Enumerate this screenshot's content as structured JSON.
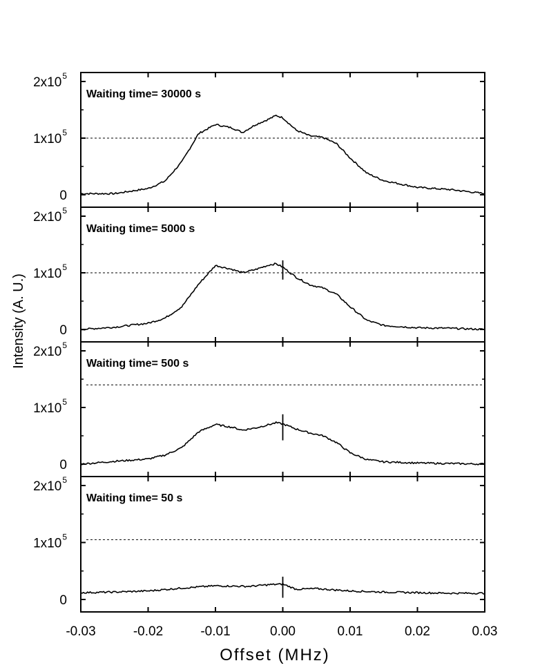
{
  "chart_data": {
    "type": "line",
    "xlabel": "Offset (MHz)",
    "ylabel": "Intensity (A. U.)",
    "xlim": [
      -0.03,
      0.03
    ],
    "ylim": [
      0,
      200000
    ],
    "x_ticks": [
      "-0.03",
      "-0.02",
      "-0.01",
      "0.00",
      "0.01",
      "0.02",
      "0.03"
    ],
    "y_ticks": [
      {
        "base": "0",
        "exp": ""
      },
      {
        "base": "1x10",
        "exp": "5"
      },
      {
        "base": "2x10",
        "exp": "5"
      }
    ],
    "grid": false,
    "legend": "none",
    "line_color": "#000000",
    "reference_line": "dashed horizontal line in each panel",
    "panels": [
      {
        "title": "Waiting time= 30000 s",
        "ref_y": 100000,
        "x": [
          -0.03,
          -0.025,
          -0.02,
          -0.0175,
          -0.015,
          -0.0125,
          -0.01,
          -0.0075,
          -0.006,
          -0.004,
          -0.002,
          -0.001,
          0.0,
          0.002,
          0.004,
          0.006,
          0.008,
          0.01,
          0.0125,
          0.015,
          0.02,
          0.025,
          0.03
        ],
        "y": [
          2000,
          2000,
          11000,
          24000,
          58000,
          108000,
          124000,
          118000,
          110000,
          124000,
          134000,
          140000,
          136000,
          114000,
          104000,
          101000,
          90000,
          65000,
          38000,
          25000,
          13000,
          9000,
          2000
        ]
      },
      {
        "title": "Waiting time= 5000 s",
        "ref_y": 100000,
        "x": [
          -0.03,
          -0.025,
          -0.02,
          -0.0175,
          -0.015,
          -0.0125,
          -0.01,
          -0.0075,
          -0.006,
          -0.004,
          -0.002,
          -0.001,
          0.0,
          0.002,
          0.004,
          0.006,
          0.008,
          0.01,
          0.0125,
          0.015,
          0.02,
          0.025,
          0.03
        ],
        "y": [
          0,
          4000,
          11000,
          20000,
          40000,
          80000,
          113000,
          106000,
          100000,
          106000,
          114000,
          116000,
          110000,
          92000,
          79000,
          73000,
          62000,
          40000,
          16000,
          7000,
          3000,
          2000,
          0
        ],
        "spike": {
          "x": 0.0,
          "y_max": 122000,
          "y_min": 88000
        }
      },
      {
        "title": "Waiting time= 500 s",
        "ref_y": 140000,
        "x": [
          -0.03,
          -0.025,
          -0.02,
          -0.0175,
          -0.015,
          -0.0125,
          -0.01,
          -0.0075,
          -0.006,
          -0.004,
          -0.002,
          -0.001,
          0.0,
          0.002,
          0.004,
          0.006,
          0.008,
          0.01,
          0.0125,
          0.015,
          0.02,
          0.025,
          0.03
        ],
        "y": [
          0,
          5000,
          9000,
          16000,
          29000,
          57000,
          70000,
          65000,
          60000,
          64000,
          70000,
          73000,
          71000,
          62000,
          55000,
          50000,
          38000,
          20000,
          8000,
          4000,
          2000,
          1000,
          0
        ],
        "spike": {
          "x": 0.0,
          "y_max": 88000,
          "y_min": 42000
        }
      },
      {
        "title": "Waiting time= 50 s",
        "ref_y": 105000,
        "x": [
          -0.03,
          -0.025,
          -0.02,
          -0.015,
          -0.01,
          -0.005,
          -0.002,
          0.0,
          0.002,
          0.005,
          0.01,
          0.015,
          0.02,
          0.025,
          0.03
        ],
        "y": [
          12000,
          13000,
          15000,
          20000,
          24000,
          23000,
          26000,
          27000,
          18000,
          19000,
          15000,
          13000,
          12000,
          11000,
          11000
        ],
        "spike": {
          "x": 0.0,
          "y_max": 40000,
          "y_min": 3000
        }
      }
    ]
  }
}
